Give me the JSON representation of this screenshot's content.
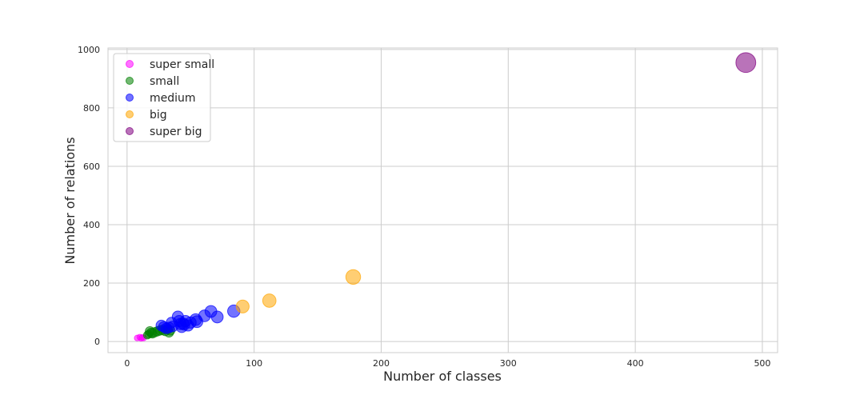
{
  "chart_data": {
    "type": "scatter",
    "xlabel": "Number of classes",
    "ylabel": "Number of relations",
    "xlim": [
      -15,
      512
    ],
    "ylim": [
      -38,
      1005
    ],
    "xticks": [
      0,
      100,
      200,
      300,
      400,
      500
    ],
    "yticks": [
      0,
      200,
      400,
      600,
      800,
      1000
    ],
    "grid": true,
    "legend_position": "upper-left",
    "series": [
      {
        "name": "super small",
        "color": "#ff00ff",
        "points": [
          [
            8,
            12,
            1
          ],
          [
            10,
            15,
            1
          ],
          [
            11,
            11,
            1
          ],
          [
            12,
            14,
            1
          ],
          [
            13,
            12,
            1
          ]
        ]
      },
      {
        "name": "small",
        "color": "#008000",
        "points": [
          [
            16,
            22,
            2
          ],
          [
            17,
            25,
            2
          ],
          [
            18,
            35,
            3
          ],
          [
            19,
            30,
            3
          ],
          [
            20,
            28,
            3
          ],
          [
            22,
            32,
            3
          ],
          [
            24,
            35,
            3
          ],
          [
            26,
            38,
            3
          ],
          [
            28,
            40,
            3
          ],
          [
            30,
            36,
            3
          ],
          [
            32,
            42,
            3
          ],
          [
            33,
            31,
            3
          ],
          [
            34,
            38,
            3
          ]
        ]
      },
      {
        "name": "medium",
        "color": "#0000ff",
        "points": [
          [
            27,
            55,
            4
          ],
          [
            29,
            50,
            4
          ],
          [
            31,
            45,
            4
          ],
          [
            33,
            48,
            4
          ],
          [
            35,
            65,
            4
          ],
          [
            36,
            52,
            4
          ],
          [
            40,
            85,
            4.5
          ],
          [
            41,
            70,
            4.5
          ],
          [
            42,
            60,
            4.5
          ],
          [
            43,
            50,
            4.5
          ],
          [
            44,
            62,
            4.5
          ],
          [
            45,
            58,
            4.5
          ],
          [
            46,
            70,
            4.5
          ],
          [
            48,
            55,
            4.5
          ],
          [
            50,
            65,
            4.5
          ],
          [
            54,
            75,
            5
          ],
          [
            55,
            68,
            5
          ],
          [
            61,
            88,
            5
          ],
          [
            66,
            103,
            5
          ],
          [
            71,
            84,
            5
          ],
          [
            84,
            104,
            5.5
          ]
        ]
      },
      {
        "name": "big",
        "color": "#ffa500",
        "points": [
          [
            91,
            120,
            6
          ],
          [
            112,
            140,
            6.5
          ],
          [
            178,
            221,
            8
          ]
        ]
      },
      {
        "name": "super big",
        "color": "#800080",
        "points": [
          [
            487,
            955,
            15
          ]
        ]
      }
    ]
  }
}
